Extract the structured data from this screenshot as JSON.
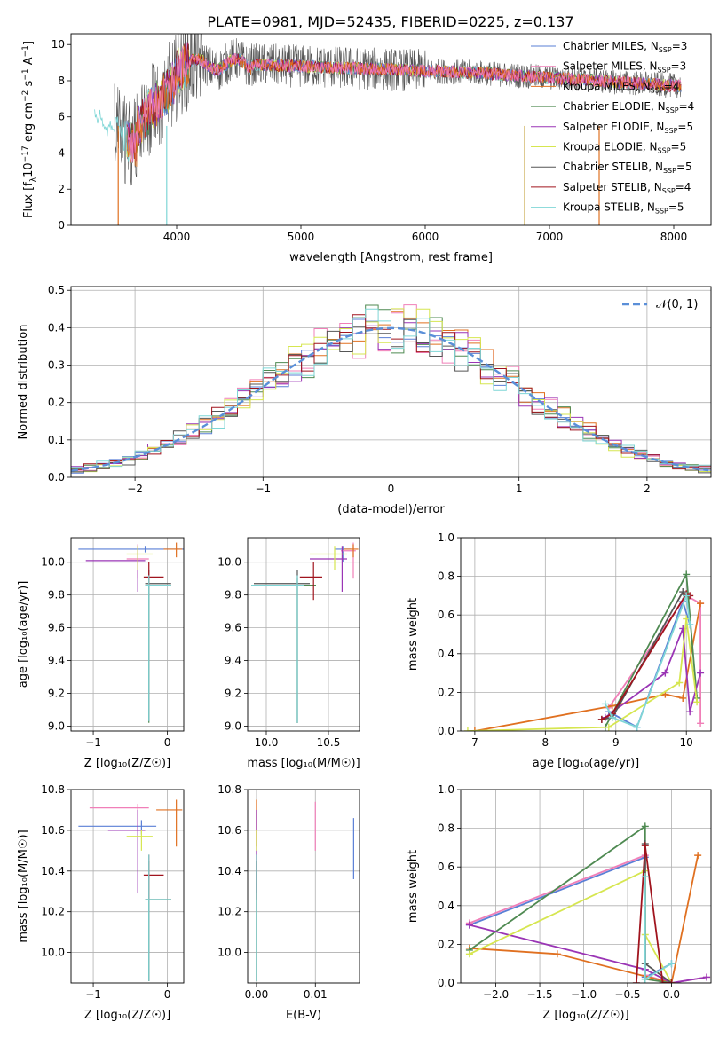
{
  "figure_title": "PLATE=0981, MJD=52435, FIBERID=0225, z=0.137",
  "series": [
    {
      "name": "Chabrier MILES, N",
      "sub": "SSP",
      "val": "=3",
      "color": "#5a7fd6"
    },
    {
      "name": "Salpeter MILES, N",
      "sub": "SSP",
      "val": "=3",
      "color": "#f07fb8"
    },
    {
      "name": "Kroupa MILES, N",
      "sub": "SSP",
      "val": "=4",
      "color": "#e07020"
    },
    {
      "name": "Chabrier ELODIE, N",
      "sub": "SSP",
      "val": "=4",
      "color": "#4f8a52"
    },
    {
      "name": "Salpeter ELODIE, N",
      "sub": "SSP",
      "val": "=5",
      "color": "#9a35b5"
    },
    {
      "name": "Kroupa ELODIE, N",
      "sub": "SSP",
      "val": "=5",
      "color": "#d6e650"
    },
    {
      "name": "Chabrier STELIB, N",
      "sub": "SSP",
      "val": "=5",
      "color": "#555555"
    },
    {
      "name": "Salpeter STELIB, N",
      "sub": "SSP",
      "val": "=4",
      "color": "#a0141e"
    },
    {
      "name": "Kroupa STELIB, N",
      "sub": "SSP",
      "val": "=5",
      "color": "#7fd6d6"
    }
  ],
  "chart_data": [
    {
      "id": "spectrum",
      "type": "line",
      "xlabel": "wavelength [Angstrom, rest frame]",
      "ylabel_prefix": "Flux [f",
      "ylabel_sub": "λ",
      "ylabel_mid": "10",
      "ylabel_sup1": "−17",
      "ylabel_mid2": " erg cm",
      "ylabel_sup2": "−2",
      "ylabel_mid3": " s",
      "ylabel_sup3": "−1",
      "ylabel_end": " A",
      "ylabel_sup4": "−1",
      "ylabel_close": "]",
      "xlim": [
        3150,
        8300
      ],
      "ylim": [
        0,
        10.6
      ],
      "xticks": [
        4000,
        5000,
        6000,
        7000,
        8000
      ],
      "yticks": [
        0,
        2,
        4,
        6,
        8,
        10
      ],
      "grid": false,
      "legend": "top-right",
      "x_range": [
        3340,
        8060
      ],
      "drop_lines": [
        {
          "x": 3530,
          "color": "#e07020"
        },
        {
          "x": 3920,
          "color": "#7fd6d6"
        },
        {
          "x": 6800,
          "color": "#c8a84a"
        },
        {
          "x": 7400,
          "color": "#e07020"
        }
      ]
    },
    {
      "id": "residuals",
      "type": "histogram",
      "xlabel": "(data-model)/error",
      "ylabel": "Normed distribution",
      "xlim": [
        -2.5,
        2.5
      ],
      "ylim": [
        0,
        0.51
      ],
      "xticks": [
        -2,
        -1,
        0,
        1,
        2
      ],
      "yticks": [
        0.0,
        0.1,
        0.2,
        0.3,
        0.4,
        0.5
      ],
      "grid": true,
      "legend": "top-right",
      "reference_label": "𝒩(0, 1)",
      "reference_color": "#5a8fd8",
      "bin_width": 0.1
    },
    {
      "id": "age_vs_Z",
      "type": "errorbar",
      "xlabel": "Z [log₁₀(Z/Z☉)]",
      "ylabel": "age  [log₁₀(age/yr)]",
      "xlim": [
        -1.3,
        0.22
      ],
      "ylim": [
        8.97,
        10.15
      ],
      "xticks": [
        -1,
        0
      ],
      "yticks": [
        9.0,
        9.2,
        9.4,
        9.6,
        9.8,
        10.0
      ],
      "grid": true,
      "points": [
        {
          "s": 0,
          "x": -0.3,
          "y": 10.08,
          "xe": [
            -1.2,
            0.3
          ],
          "ye": [
            10.06,
            10.1
          ]
        },
        {
          "s": 1,
          "x": -0.4,
          "y": 10.02,
          "xe": [
            -0.55,
            -0.25
          ],
          "ye": [
            9.9,
            10.11
          ]
        },
        {
          "s": 2,
          "x": 0.12,
          "y": 10.08,
          "xe": [
            -0.05,
            0.2
          ],
          "ye": [
            10.03,
            10.12
          ]
        },
        {
          "s": 3,
          "x": -0.25,
          "y": 9.86,
          "xe": [
            -0.3,
            0.05
          ],
          "ye": [
            9.02,
            9.9
          ]
        },
        {
          "s": 4,
          "x": -0.4,
          "y": 10.01,
          "xe": [
            -1.1,
            -0.3
          ],
          "ye": [
            9.82,
            10.1
          ]
        },
        {
          "s": 5,
          "x": -0.4,
          "y": 10.05,
          "xe": [
            -0.55,
            -0.2
          ],
          "ye": [
            9.95,
            10.1
          ]
        },
        {
          "s": 6,
          "x": -0.25,
          "y": 9.87,
          "xe": [
            -0.3,
            0.05
          ],
          "ye": [
            9.03,
            9.95
          ]
        },
        {
          "s": 7,
          "x": -0.25,
          "y": 9.91,
          "xe": [
            -0.32,
            -0.05
          ],
          "ye": [
            9.86,
            10.0
          ]
        },
        {
          "s": 8,
          "x": -0.25,
          "y": 9.86,
          "xe": [
            -0.3,
            0.05
          ],
          "ye": [
            9.03,
            9.92
          ]
        }
      ]
    },
    {
      "id": "age_vs_mass",
      "type": "errorbar",
      "xlabel": "mass [log₁₀(M/M☉)]",
      "ylabel": "",
      "xlim": [
        9.85,
        10.75
      ],
      "ylim": [
        8.97,
        10.15
      ],
      "xticks": [
        10.0,
        10.5
      ],
      "yticks": [
        9.0,
        9.2,
        9.4,
        9.6,
        9.8,
        10.0
      ],
      "grid": true,
      "points": [
        {
          "s": 0,
          "x": 10.62,
          "y": 10.08,
          "xe": [
            10.55,
            10.68
          ],
          "ye": [
            10.0,
            10.1
          ]
        },
        {
          "s": 1,
          "x": 10.7,
          "y": 10.07,
          "xe": [
            10.6,
            10.72
          ],
          "ye": [
            9.9,
            10.12
          ]
        },
        {
          "s": 2,
          "x": 10.7,
          "y": 10.08,
          "xe": [
            10.62,
            10.74
          ],
          "ye": [
            10.03,
            10.11
          ]
        },
        {
          "s": 3,
          "x": 10.25,
          "y": 9.86,
          "xe": [
            9.88,
            10.4
          ],
          "ye": [
            9.02,
            9.9
          ]
        },
        {
          "s": 4,
          "x": 10.61,
          "y": 10.02,
          "xe": [
            10.35,
            10.65
          ],
          "ye": [
            9.82,
            10.1
          ]
        },
        {
          "s": 5,
          "x": 10.55,
          "y": 10.05,
          "xe": [
            10.35,
            10.65
          ],
          "ye": [
            9.95,
            10.1
          ]
        },
        {
          "s": 6,
          "x": 10.25,
          "y": 9.87,
          "xe": [
            9.9,
            10.35
          ],
          "ye": [
            9.02,
            9.95
          ]
        },
        {
          "s": 7,
          "x": 10.38,
          "y": 9.91,
          "xe": [
            10.27,
            10.45
          ],
          "ye": [
            9.77,
            10.0
          ]
        },
        {
          "s": 8,
          "x": 10.25,
          "y": 9.86,
          "xe": [
            9.88,
            10.3
          ],
          "ye": [
            9.02,
            9.92
          ]
        }
      ]
    },
    {
      "id": "weight_vs_age",
      "type": "line",
      "xlabel": "age  [log₁₀(age/yr)]",
      "ylabel": "mass weight",
      "xlim": [
        6.8,
        10.35
      ],
      "ylim": [
        0,
        1.0
      ],
      "xticks": [
        7,
        8,
        9,
        10
      ],
      "yticks": [
        0.0,
        0.2,
        0.4,
        0.6,
        0.8,
        1.0
      ],
      "grid": true,
      "lines": [
        {
          "s": 0,
          "x": [
            8.9,
            9.3,
            9.95,
            10.05
          ],
          "y": [
            0.1,
            0.02,
            0.67,
            0.55
          ]
        },
        {
          "s": 1,
          "x": [
            8.9,
            10.0,
            10.2,
            10.2
          ],
          "y": [
            0.12,
            0.7,
            0.66,
            0.04
          ]
        },
        {
          "s": 2,
          "x": [
            7.0,
            8.95,
            9.7,
            9.95,
            10.2
          ],
          "y": [
            0.0,
            0.13,
            0.19,
            0.17,
            0.66
          ]
        },
        {
          "s": 3,
          "x": [
            8.85,
            10.0,
            10.15
          ],
          "y": [
            0.02,
            0.81,
            0.17
          ]
        },
        {
          "s": 4,
          "x": [
            8.85,
            9.7,
            9.95,
            10.05,
            10.2
          ],
          "y": [
            0.07,
            0.3,
            0.53,
            0.1,
            0.3
          ]
        },
        {
          "s": 5,
          "x": [
            6.9,
            8.9,
            9.9,
            10.0,
            10.15
          ],
          "y": [
            0.0,
            0.02,
            0.25,
            0.58,
            0.15
          ]
        },
        {
          "s": 6,
          "x": [
            8.8,
            8.95,
            9.95,
            10.0
          ],
          "y": [
            0.06,
            0.07,
            0.72,
            0.7
          ]
        },
        {
          "s": 7,
          "x": [
            8.8,
            8.95,
            10.0,
            10.05
          ],
          "y": [
            0.06,
            0.09,
            0.71,
            0.7
          ]
        },
        {
          "s": 8,
          "x": [
            8.85,
            8.95,
            9.3,
            10.0,
            10.05
          ],
          "y": [
            0.14,
            0.07,
            0.02,
            0.7,
            0.55
          ]
        }
      ]
    },
    {
      "id": "mass_vs_Z",
      "type": "errorbar",
      "xlabel": "Z [log₁₀(Z/Z☉)]",
      "ylabel": "mass [log₁₀(M/M☉)]",
      "xlim": [
        -1.3,
        0.22
      ],
      "ylim": [
        9.85,
        10.8
      ],
      "xticks": [
        -1,
        0
      ],
      "yticks": [
        10.0,
        10.2,
        10.4,
        10.6,
        10.8
      ],
      "grid": true,
      "points": [
        {
          "s": 0,
          "x": -0.35,
          "y": 10.62,
          "xe": [
            -1.2,
            -0.15
          ],
          "ye": [
            10.58,
            10.65
          ]
        },
        {
          "s": 1,
          "x": -0.4,
          "y": 10.71,
          "xe": [
            -1.05,
            -0.25
          ],
          "ye": [
            10.6,
            10.73
          ]
        },
        {
          "s": 2,
          "x": 0.12,
          "y": 10.7,
          "xe": [
            -0.15,
            0.2
          ],
          "ye": [
            10.52,
            10.75
          ]
        },
        {
          "s": 3,
          "x": -0.25,
          "y": 10.26,
          "xe": [
            -0.3,
            0.05
          ],
          "ye": [
            9.86,
            10.45
          ]
        },
        {
          "s": 4,
          "x": -0.4,
          "y": 10.6,
          "xe": [
            -0.8,
            -0.3
          ],
          "ye": [
            10.29,
            10.7
          ]
        },
        {
          "s": 5,
          "x": -0.35,
          "y": 10.57,
          "xe": [
            -0.55,
            -0.2
          ],
          "ye": [
            10.5,
            10.6
          ]
        },
        {
          "s": 6,
          "x": -0.25,
          "y": 10.26,
          "xe": [
            -0.3,
            0.05
          ],
          "ye": [
            9.86,
            10.45
          ]
        },
        {
          "s": 7,
          "x": -0.25,
          "y": 10.38,
          "xe": [
            -0.32,
            -0.05
          ],
          "ye": [
            10.26,
            10.48
          ]
        },
        {
          "s": 8,
          "x": -0.25,
          "y": 10.26,
          "xe": [
            -0.3,
            0.05
          ],
          "ye": [
            9.86,
            10.48
          ]
        }
      ]
    },
    {
      "id": "mass_vs_EBV",
      "type": "errorbar",
      "xlabel": "E(B-V)",
      "ylabel": "",
      "xlim": [
        -0.0015,
        0.0175
      ],
      "ylim": [
        9.85,
        10.8
      ],
      "xticks": [
        0.0,
        0.01
      ],
      "xtick_labels": [
        "0.00",
        "0.01"
      ],
      "yticks": [
        10.0,
        10.2,
        10.4,
        10.6,
        10.8
      ],
      "grid": true,
      "points": [
        {
          "s": 0,
          "x": 0.0165,
          "y": 10.6,
          "xe": [
            0.0165,
            0.0165
          ],
          "ye": [
            10.36,
            10.66
          ]
        },
        {
          "s": 1,
          "x": 0.01,
          "y": 10.6,
          "xe": [
            0.01,
            0.01
          ],
          "ye": [
            10.5,
            10.74
          ]
        },
        {
          "s": 2,
          "x": 0.0,
          "y": 10.7,
          "xe": [
            0.0,
            0.0
          ],
          "ye": [
            10.52,
            10.75
          ]
        },
        {
          "s": 3,
          "x": 0.0,
          "y": 10.26,
          "xe": [
            0.0,
            0.0
          ],
          "ye": [
            9.86,
            10.45
          ]
        },
        {
          "s": 4,
          "x": 0.0,
          "y": 10.6,
          "xe": [
            0.0,
            0.0
          ],
          "ye": [
            10.29,
            10.7
          ]
        },
        {
          "s": 5,
          "x": 0.0,
          "y": 10.57,
          "xe": [
            0.0,
            0.0
          ],
          "ye": [
            10.5,
            10.6
          ]
        },
        {
          "s": 6,
          "x": 0.0,
          "y": 10.26,
          "xe": [
            0.0,
            0.0
          ],
          "ye": [
            9.86,
            10.45
          ]
        },
        {
          "s": 7,
          "x": 0.0,
          "y": 10.38,
          "xe": [
            0.0,
            0.0
          ],
          "ye": [
            10.26,
            10.48
          ]
        },
        {
          "s": 8,
          "x": 0.0,
          "y": 10.26,
          "xe": [
            0.0,
            0.0
          ],
          "ye": [
            9.86,
            10.48
          ]
        }
      ]
    },
    {
      "id": "weight_vs_Z",
      "type": "line",
      "xlabel": "Z [log₁₀(Z/Z☉)]",
      "ylabel": "mass weight",
      "xlim": [
        -2.4,
        0.45
      ],
      "ylim": [
        0,
        1.0
      ],
      "xticks": [
        -2.0,
        -1.5,
        -1.0,
        -0.5,
        0.0
      ],
      "yticks": [
        0.0,
        0.2,
        0.4,
        0.6,
        0.8,
        1.0
      ],
      "grid": true,
      "lines": [
        {
          "s": 0,
          "x": [
            -2.3,
            -0.3,
            -0.3,
            0.0
          ],
          "y": [
            0.3,
            0.65,
            0.03,
            0.1
          ]
        },
        {
          "s": 1,
          "x": [
            -2.3,
            -0.3,
            -0.3,
            0.0,
            0.4
          ],
          "y": [
            0.31,
            0.66,
            0.04,
            0.0,
            0.03
          ]
        },
        {
          "s": 2,
          "x": [
            -2.3,
            -1.3,
            0.0,
            0.3
          ],
          "y": [
            0.18,
            0.15,
            0.0,
            0.66
          ]
        },
        {
          "s": 3,
          "x": [
            -2.3,
            -0.3,
            -0.3,
            0.0
          ],
          "y": [
            0.17,
            0.81,
            0.02,
            0.0
          ]
        },
        {
          "s": 4,
          "x": [
            -2.3,
            -0.3,
            0.0,
            0.4
          ],
          "y": [
            0.3,
            0.07,
            0.0,
            0.03
          ]
        },
        {
          "s": 5,
          "x": [
            -2.3,
            -0.3,
            -0.3,
            0.0
          ],
          "y": [
            0.15,
            0.58,
            0.25,
            0.0
          ]
        },
        {
          "s": 6,
          "x": [
            -0.3,
            -0.3,
            0.0
          ],
          "y": [
            0.72,
            0.1,
            0.0
          ]
        },
        {
          "s": 7,
          "x": [
            -0.4,
            -0.3,
            -0.1,
            0.0
          ],
          "y": [
            0.0,
            0.71,
            0.0,
            0.0
          ]
        },
        {
          "s": 8,
          "x": [
            -0.3,
            -0.3,
            0.0
          ],
          "y": [
            0.55,
            0.02,
            0.1
          ]
        }
      ]
    }
  ]
}
